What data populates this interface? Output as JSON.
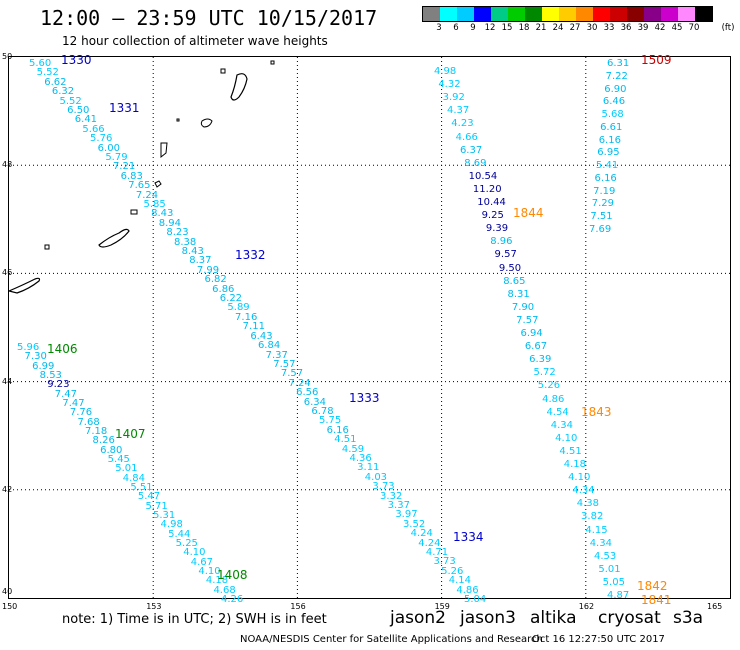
{
  "header": {
    "title": "12:00 – 23:59 UTC 10/15/2017",
    "subtitle": "12 hour collection of altimeter wave heights"
  },
  "legend": {
    "unit": "(ft)",
    "colors": [
      "#808080",
      "#00ffff",
      "#00ccff",
      "#0000ff",
      "#00cc88",
      "#00cc00",
      "#008800",
      "#ffff00",
      "#ffcc00",
      "#ff8800",
      "#ff0000",
      "#cc0000",
      "#880000",
      "#880088",
      "#cc00cc",
      "#ff88ff",
      "#000000"
    ],
    "ticks": [
      "3",
      "6",
      "9",
      "12",
      "15",
      "18",
      "21",
      "24",
      "27",
      "30",
      "33",
      "36",
      "39",
      "42",
      "45",
      "70"
    ]
  },
  "axes": {
    "x_ticks": [
      "150",
      "153",
      "156",
      "159",
      "162",
      "165"
    ],
    "y_ticks": [
      "50",
      "48",
      "46",
      "44",
      "42",
      "40"
    ]
  },
  "satellites": {
    "jason2": {
      "name": "jason2",
      "color": "#0000cc"
    },
    "jason3": {
      "name": "jason3",
      "color": "#008800"
    },
    "altika": {
      "name": "altika",
      "color": "#ff8800"
    },
    "cryosat": {
      "name": "cryosat",
      "color": "#cc0000"
    },
    "s3a": {
      "name": "s3a",
      "color": "#cc0000"
    }
  },
  "track_labels": [
    {
      "text": "1330",
      "sat": "jason2"
    },
    {
      "text": "1331",
      "sat": "jason2"
    },
    {
      "text": "1332",
      "sat": "jason2"
    },
    {
      "text": "1333",
      "sat": "jason2"
    },
    {
      "text": "1334",
      "sat": "jason2"
    },
    {
      "text": "1406",
      "sat": "jason3"
    },
    {
      "text": "1407",
      "sat": "jason3"
    },
    {
      "text": "1408",
      "sat": "jason3"
    },
    {
      "text": "1844",
      "sat": "altika"
    },
    {
      "text": "1843",
      "sat": "altika"
    },
    {
      "text": "1842",
      "sat": "altika"
    },
    {
      "text": "1841",
      "sat": "altika"
    },
    {
      "text": "1509",
      "sat": "cryosat"
    }
  ],
  "tracks": [
    {
      "id": "jason2-main",
      "values": [
        "5.60",
        "5.52",
        "6.62",
        "6.32",
        "5.52",
        "6.50",
        "6.41",
        "5.66",
        "5.76",
        "6.00",
        "5.79",
        "7.21",
        "6.83",
        "7.65",
        "7.24",
        "5.85",
        "8.43",
        "8.94",
        "8.23",
        "8.38",
        "8.43",
        "8.37",
        "7.99",
        "6.82",
        "6.86",
        "6.22",
        "5.89",
        "7.16",
        "7.11",
        "6.43",
        "6.84",
        "7.37",
        "7.57",
        "7.57",
        "7.24",
        "6.56",
        "6.34",
        "6.78",
        "5.75",
        "6.16",
        "4.51",
        "4.59",
        "4.36",
        "3.11",
        "4.03",
        "3.73",
        "3.32",
        "3.37",
        "3.97",
        "3.52",
        "4.24",
        "4.24",
        "4.71",
        "3.73",
        "5.26",
        "4.14",
        "4.86",
        "5.04"
      ]
    },
    {
      "id": "jason3-main",
      "values": [
        "5.96",
        "7.30",
        "6.99",
        "8.53",
        "9.23",
        "7.47",
        "7.47",
        "7.76",
        "7.68",
        "7.18",
        "8.26",
        "6.80",
        "5.45",
        "5.01",
        "4.84",
        "5.51",
        "5.47",
        "5.71",
        "5.31",
        "4.98",
        "5.44",
        "5.25",
        "4.10",
        "4.67",
        "4.10",
        "4.18",
        "4.68",
        "4.26"
      ]
    },
    {
      "id": "altika-main",
      "values": [
        "4.98",
        "4.32",
        "3.92",
        "4.37",
        "4.23",
        "4.66",
        "6.37",
        "8.69",
        "10.54",
        "11.20",
        "10.44",
        "9.25",
        "9.39",
        "8.96",
        "9.57",
        "9.50",
        "8.65",
        "8.31",
        "7.90",
        "7.57",
        "6.94",
        "6.67",
        "6.39",
        "5.72",
        "5.26",
        "4.86",
        "4.54",
        "4.34",
        "4.10",
        "4.51",
        "4.18",
        "4.10",
        "4.34",
        "4.38",
        "3.82",
        "4.15",
        "4.34",
        "4.53",
        "5.01",
        "5.05",
        "4.87"
      ]
    },
    {
      "id": "cryosat-main",
      "values": [
        "6.31",
        "7.22",
        "6.90",
        "6.46",
        "5.68",
        "6.61",
        "6.16",
        "6.95",
        "5.41",
        "6.16",
        "7.19",
        "7.29",
        "7.51",
        "7.69"
      ]
    }
  ],
  "footer": {
    "note": "note:  1) Time is in UTC;  2) SWH is in feet",
    "credit": "NOAA/NESDIS Center for Satellite Applications and Research",
    "timestamp": "Oct 16 12:27:50 UTC 2017"
  }
}
